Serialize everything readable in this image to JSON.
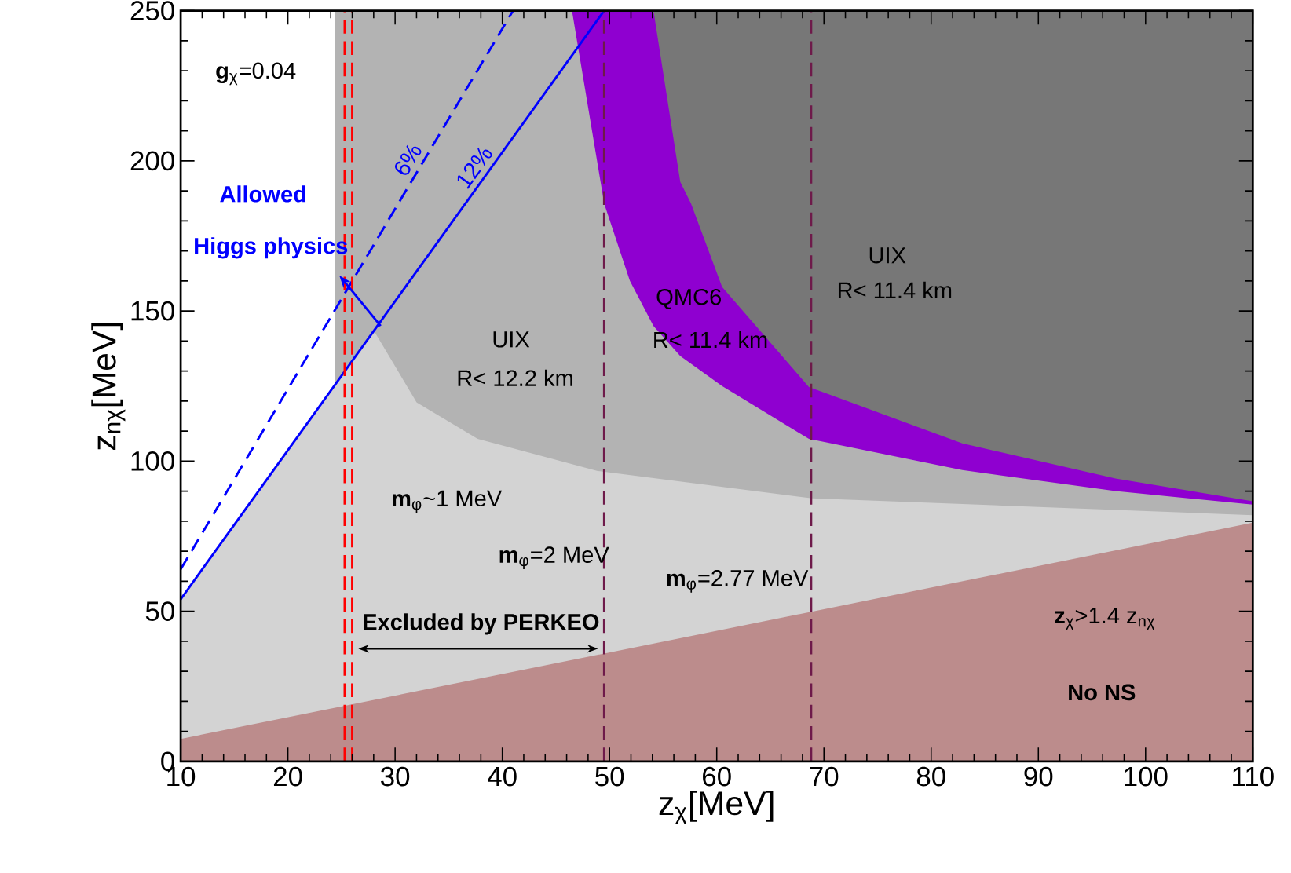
{
  "chart_data": {
    "type": "area",
    "xlabel": "z$_{χ}$[MeV]",
    "ylabel": "z$_{nχ}$[MeV]",
    "xlim": [
      10,
      110
    ],
    "ylim": [
      0,
      250
    ],
    "xticks": [
      10,
      20,
      30,
      40,
      50,
      60,
      70,
      80,
      90,
      100,
      110
    ],
    "yticks": [
      0,
      50,
      100,
      150,
      200,
      250
    ],
    "grid": false,
    "marker": "none",
    "series": [
      {
        "color": "#777777",
        "x": [
          54.1,
          110
        ],
        "values": [
          250,
          250
        ]
      },
      {
        "color": "#8f00d0",
        "x": [
          46.5,
          54.1,
          56.6,
          57.6,
          60.5,
          68.6,
          82.9,
          97.2,
          110
        ],
        "values": [
          250,
          250,
          193,
          185.8,
          158,
          124.7,
          105.9,
          94.2,
          86.6
        ]
      },
      {
        "color": "#b3b3b3",
        "x": [
          24.4,
          46.5,
          49.5,
          51.9,
          54.1,
          56.6,
          60.5,
          68.6,
          82.9,
          97.2,
          110
        ],
        "values": [
          250,
          250,
          185.8,
          160,
          145,
          135,
          125,
          107.4,
          97,
          90,
          85.5
        ]
      },
      {
        "color": "#d3d3d3",
        "x": [
          10,
          26.8,
          28.1,
          32,
          37.7,
          48.9,
          68.9,
          110
        ],
        "values": [
          54,
          137,
          143,
          119.6,
          107.4,
          96.7,
          87.6,
          82
        ]
      },
      {
        "color": "#bc8c8c",
        "x": [
          10,
          110
        ],
        "values": [
          7.5,
          79.5
        ]
      },
      {
        "type": "line",
        "name": "6%",
        "color": "#0000ff",
        "line_style": "dashed",
        "x": [
          10,
          41
        ],
        "values": [
          64,
          250
        ]
      },
      {
        "type": "line",
        "name": "12%",
        "color": "#0000ff",
        "line_style": "solid",
        "x": [
          10,
          49.5
        ],
        "values": [
          54,
          250
        ]
      }
    ],
    "ref_lines": [
      {
        "axis": "x",
        "value": 25.3,
        "color": "#ff0000",
        "line_style": "dashed"
      },
      {
        "axis": "x",
        "value": 26.0,
        "color": "#ff0000",
        "line_style": "dashed"
      },
      {
        "axis": "x",
        "value": 49.5,
        "color": "#6e1a4a",
        "line_style": "dashed"
      },
      {
        "axis": "x",
        "value": 68.8,
        "color": "#6e1a4a",
        "line_style": "dashed"
      }
    ],
    "annotations": [
      "**g**$_{χ}$=0.04",
      "Allowed",
      "Higgs physics",
      "UIX",
      "R< 12.2 km",
      "QMC6",
      "R< 11.4 km",
      "UIX",
      "R< 11.4 km",
      "**m**$_{φ}$~1 MeV",
      "**m**$_{φ}$=2 MeV",
      "**m**$_{φ}$=2.77 MeV",
      "**Excluded by PERKEO**",
      "**z**$_{χ}$>1.4 z$_{nχ}$",
      "**No NS**"
    ]
  }
}
